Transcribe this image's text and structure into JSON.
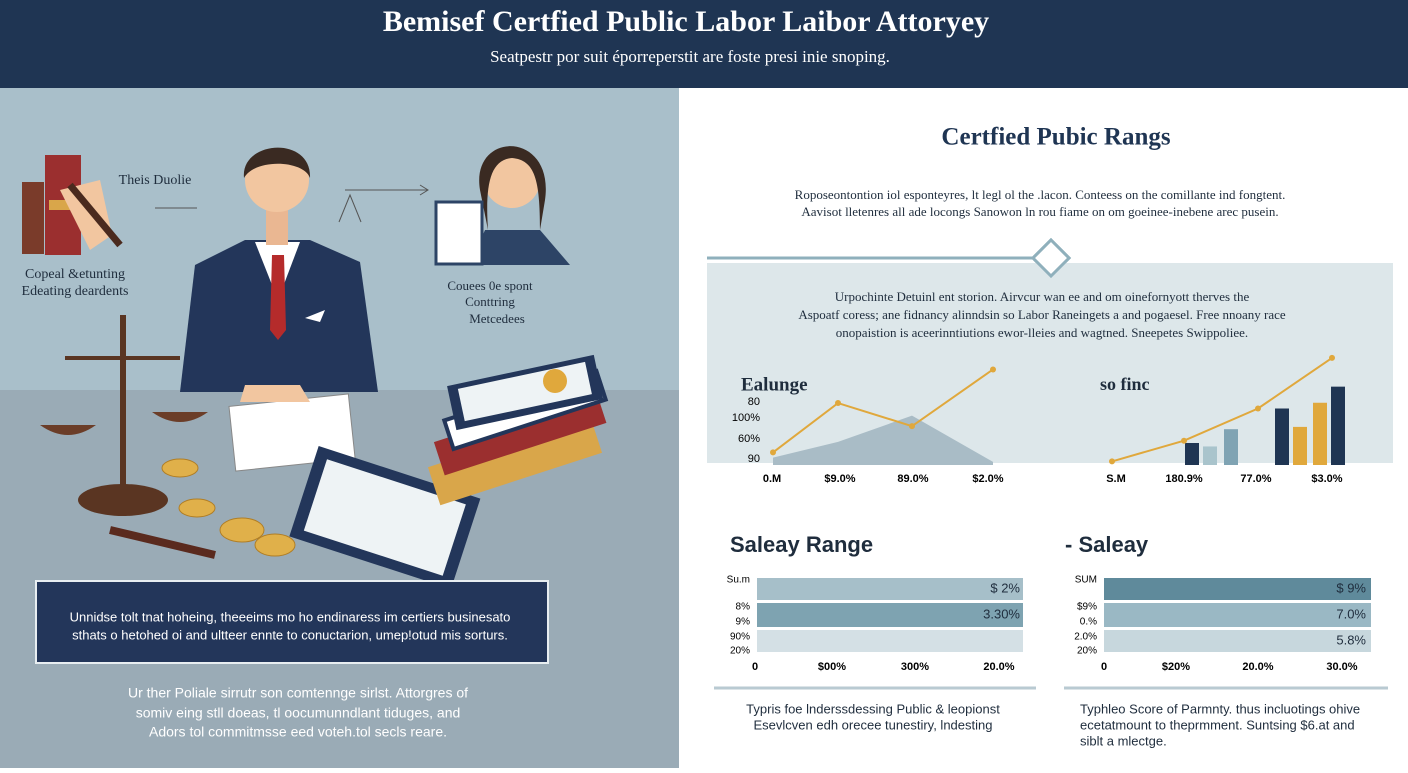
{
  "header": {
    "title": "Bemisef Certfied Public Labor Laibor Attoryey",
    "subtitle": "Seatpestr por suit éporreperstit are foste presi inie snoping."
  },
  "illustration": {
    "labels": [
      "Theis Duolie",
      "Copeal &etunting",
      "Edeating deardents",
      "Couees 0e spont",
      "Conttring",
      "Metcedees"
    ]
  },
  "callout": {
    "lines": [
      "Unnidse tolt tnat hoheing, theeeims mo ho endinaress im certiers businesato",
      "sthats o hetohed oi and ultteer ennte to conuctarion, umep!otud mis sorturs."
    ]
  },
  "left_note": {
    "lines": [
      "Ur ther Poliale sirrutr son comtennge sirlst. Attorgres of",
      "somiv eing stll doeas, tl oocumunndlant tiduges, and",
      "Adors tol commitmsse eed voteh.tol secls reare."
    ]
  },
  "section": {
    "title": "Certfied Pubic Rangs",
    "intro": [
      "Roposeontontion iol esponteyres, lt legl ol the .lacon. Conteess on the comillante ind fongtent.",
      "Aavisot lletenres all ade locongs Sanowon ln rou fiame on om goeinee-inebene arec pusein."
    ],
    "band_text": [
      "Urpochinte Detuinl ent storion. Airvcur wan ee and om oinefornyott therves the",
      "Aspoatf coress; ane fidnancy alinndsin so Labor Raneingets a and pogaesel. Free nnoany race",
      "onopaistion is aceerinntiutions ewor-lleies and wagtned. Sneepetes Swippoliee."
    ]
  },
  "charts": [
    {
      "type": "line",
      "title": "Ealunge",
      "ylabels": [
        "80",
        "100%",
        "60%",
        "90"
      ],
      "xlabels": [
        "0.M",
        "$9.0%",
        "89.0%",
        "$2.0%"
      ],
      "ylim": [
        0,
        100
      ],
      "line": [
        12,
        59,
        37,
        91
      ],
      "area": [
        7,
        22,
        47,
        3
      ],
      "line_color": "#e0a83c",
      "area_color": "#a9bcc6"
    },
    {
      "type": "line_bar",
      "title": "so finc",
      "xlabels": [
        "S.M",
        "180.9%",
        "77.0%",
        "$3.0%"
      ],
      "ylim": [
        0,
        100
      ],
      "line": [
        4,
        22,
        50,
        94
      ],
      "line_color": "#e0a83c",
      "bars": [
        20,
        17,
        32,
        50,
        34,
        55,
        69
      ],
      "bar_colors": [
        "#1f3553",
        "#a9c4cc",
        "#7fa3b3",
        "#1f3553",
        "#e0a83c",
        "#e0a83c",
        "#1f3553"
      ]
    }
  ],
  "salary": [
    {
      "title": "Saleay Range",
      "row_labels": [
        "Su.m",
        "8%",
        "9%",
        "90%",
        "20%"
      ],
      "bar_labels": [
        "$ 2%",
        "3.30%"
      ],
      "xlabels": [
        "0",
        "$00%",
        "300%",
        "20.0%"
      ],
      "fills": [
        100,
        100,
        100
      ],
      "colors": [
        "#a6bfc9",
        "#7ea3b1",
        "#d4e0e5"
      ],
      "note": [
        "Typris foe lnderssdessing Public & leopionst",
        "Esevlcven edh orecee tunestiry, lndesting"
      ]
    },
    {
      "title": "- Saleay",
      "row_labels": [
        "SUM",
        "$9%",
        "0.%",
        "2.0%",
        "20%"
      ],
      "bar_labels": [
        "$ 9%",
        "7.0%",
        "5.8%"
      ],
      "xlabels": [
        "0",
        "$20%",
        "20.0%",
        "30.0%"
      ],
      "fills": [
        100,
        100,
        100
      ],
      "colors": [
        "#5f8a9b",
        "#9ab8c4",
        "#c7d7dd"
      ],
      "note": [
        "Typhleo Score of Parmnty. thus incluotings ohive",
        "ecetatmount to theprmment. Suntsing $6.at and",
        "siblt a mlectge."
      ]
    }
  ]
}
